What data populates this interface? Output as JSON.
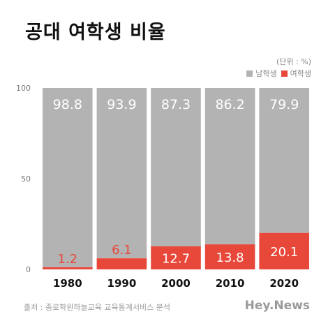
{
  "title": "공대 여학생 비율",
  "unit_note": "(단위 : %)",
  "legend": [
    {
      "label": "남학생",
      "color": "#b3b3b3"
    },
    {
      "label": "여학생",
      "color": "#e8483a"
    }
  ],
  "source": "출처 : 종로학원하늘교육 교육통계서비스 분석",
  "brand": "Hey.News",
  "chart_data": {
    "type": "bar",
    "stacked": true,
    "categories": [
      "1980",
      "1990",
      "2000",
      "2010",
      "2020"
    ],
    "series": [
      {
        "name": "남학생",
        "values": [
          98.8,
          93.9,
          87.3,
          86.2,
          79.9
        ],
        "color": "#b3b3b3"
      },
      {
        "name": "여학생",
        "values": [
          1.2,
          6.1,
          12.7,
          13.8,
          20.1
        ],
        "color": "#e8483a"
      }
    ],
    "yticks": [
      0,
      50,
      100
    ],
    "ylim": [
      0,
      100
    ],
    "grid": false,
    "legend_position": "top-right"
  }
}
